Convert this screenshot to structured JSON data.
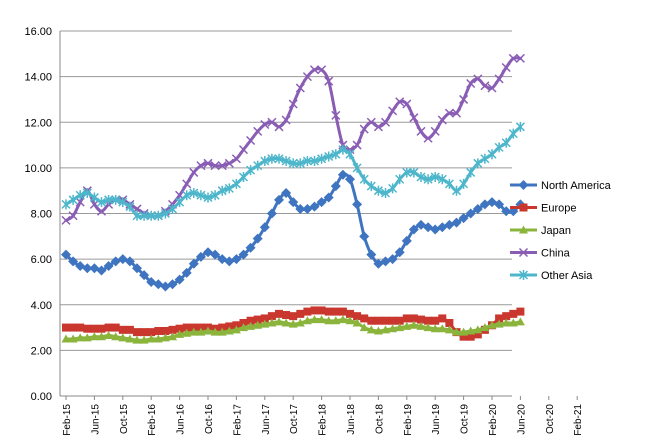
{
  "chart_data": {
    "type": "line",
    "title": "",
    "xlabel": "",
    "ylabel": "",
    "ylim": [
      0,
      16
    ],
    "y_ticks": [
      "0.00",
      "2.00",
      "4.00",
      "6.00",
      "8.00",
      "10.00",
      "12.00",
      "14.00",
      "16.00"
    ],
    "grid": true,
    "legend_position": "right",
    "x_tick_labels": [
      "Feb-15",
      "Jun-15",
      "Oct-15",
      "Feb-16",
      "Jun-16",
      "Oct-16",
      "Feb-17",
      "Jun-17",
      "Oct-17",
      "Feb-18",
      "Jun-18",
      "Oct-18",
      "Feb-19",
      "Jun-19",
      "Oct-19",
      "Feb-20",
      "Jun-20",
      "Oct-20",
      "Feb-21"
    ],
    "series": [
      {
        "name": "North America",
        "color": "#3F75C0",
        "marker": "diamond",
        "values": [
          6.2,
          5.9,
          5.7,
          5.6,
          5.6,
          5.5,
          5.7,
          5.9,
          6.0,
          5.9,
          5.6,
          5.3,
          5.0,
          4.9,
          4.8,
          4.9,
          5.1,
          5.4,
          5.8,
          6.1,
          6.3,
          6.2,
          6.0,
          5.9,
          6.0,
          6.2,
          6.5,
          6.9,
          7.4,
          8.0,
          8.6,
          8.9,
          8.5,
          8.2,
          8.2,
          8.3,
          8.5,
          8.7,
          9.2,
          9.7,
          9.5,
          8.4,
          7.0,
          6.2,
          5.8,
          5.9,
          6.0,
          6.3,
          6.8,
          7.3,
          7.5,
          7.4,
          7.3,
          7.4,
          7.5,
          7.6,
          7.8,
          8.0,
          8.2,
          8.4,
          8.5,
          8.4,
          8.1,
          8.1,
          8.4
        ]
      },
      {
        "name": "Europe",
        "color": "#C9372E",
        "marker": "square",
        "values": [
          3.0,
          3.0,
          3.0,
          2.95,
          2.95,
          2.95,
          3.0,
          3.0,
          2.9,
          2.9,
          2.8,
          2.8,
          2.8,
          2.85,
          2.85,
          2.9,
          2.95,
          3.0,
          3.0,
          3.0,
          3.0,
          2.95,
          3.0,
          3.05,
          3.1,
          3.2,
          3.3,
          3.35,
          3.4,
          3.5,
          3.6,
          3.55,
          3.5,
          3.6,
          3.7,
          3.75,
          3.75,
          3.7,
          3.7,
          3.7,
          3.6,
          3.5,
          3.4,
          3.3,
          3.3,
          3.3,
          3.3,
          3.3,
          3.4,
          3.4,
          3.35,
          3.3,
          3.3,
          3.4,
          3.2,
          2.8,
          2.6,
          2.6,
          2.7,
          2.9,
          3.1,
          3.4,
          3.5,
          3.6,
          3.7
        ]
      },
      {
        "name": "Japan",
        "color": "#8AB43C",
        "marker": "triangle",
        "values": [
          2.5,
          2.5,
          2.55,
          2.55,
          2.6,
          2.6,
          2.65,
          2.6,
          2.55,
          2.5,
          2.45,
          2.45,
          2.5,
          2.5,
          2.55,
          2.6,
          2.7,
          2.75,
          2.8,
          2.8,
          2.85,
          2.8,
          2.8,
          2.85,
          2.9,
          3.0,
          3.05,
          3.1,
          3.15,
          3.2,
          3.25,
          3.2,
          3.15,
          3.2,
          3.3,
          3.35,
          3.35,
          3.3,
          3.3,
          3.35,
          3.3,
          3.2,
          3.0,
          2.9,
          2.85,
          2.9,
          2.95,
          3.0,
          3.05,
          3.1,
          3.05,
          3.0,
          2.95,
          2.95,
          2.9,
          2.8,
          2.8,
          2.85,
          2.9,
          3.0,
          3.1,
          3.15,
          3.2,
          3.2,
          3.25
        ]
      },
      {
        "name": "China",
        "color": "#8A5DB5",
        "marker": "x",
        "values": [
          7.7,
          7.9,
          8.5,
          9.0,
          8.4,
          8.1,
          8.4,
          8.6,
          8.6,
          8.4,
          8.2,
          8.0,
          7.9,
          7.9,
          8.1,
          8.4,
          8.8,
          9.3,
          9.8,
          10.1,
          10.2,
          10.1,
          10.1,
          10.2,
          10.4,
          10.8,
          11.2,
          11.6,
          11.9,
          12.0,
          11.8,
          12.1,
          12.8,
          13.5,
          14.0,
          14.3,
          14.3,
          13.8,
          12.3,
          11.0,
          10.8,
          11.0,
          11.7,
          12.0,
          11.8,
          12.0,
          12.5,
          12.9,
          12.8,
          12.2,
          11.6,
          11.3,
          11.6,
          12.1,
          12.4,
          12.4,
          13.0,
          13.7,
          13.9,
          13.6,
          13.5,
          13.9,
          14.4,
          14.8,
          14.8
        ]
      },
      {
        "name": "Other Asia",
        "color": "#4DB6CB",
        "marker": "star",
        "values": [
          8.4,
          8.6,
          8.8,
          8.9,
          8.7,
          8.5,
          8.6,
          8.6,
          8.5,
          8.3,
          7.9,
          7.9,
          7.9,
          7.9,
          8.0,
          8.2,
          8.5,
          8.8,
          8.9,
          8.8,
          8.7,
          8.8,
          9.0,
          9.1,
          9.3,
          9.6,
          9.9,
          10.1,
          10.3,
          10.4,
          10.4,
          10.3,
          10.2,
          10.2,
          10.3,
          10.3,
          10.4,
          10.5,
          10.6,
          10.8,
          10.6,
          10.0,
          9.5,
          9.2,
          9.0,
          8.9,
          9.1,
          9.5,
          9.8,
          9.8,
          9.6,
          9.5,
          9.6,
          9.5,
          9.3,
          9.0,
          9.3,
          9.8,
          10.2,
          10.4,
          10.6,
          10.9,
          11.1,
          11.5,
          11.8
        ]
      }
    ]
  }
}
